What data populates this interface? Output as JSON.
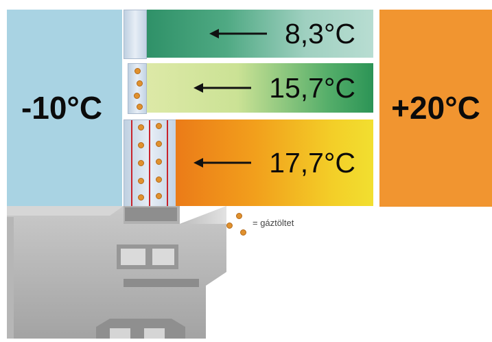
{
  "outside": {
    "label": "-10°C",
    "color": "#a9d3e3"
  },
  "inside": {
    "label": "+20°C",
    "color": "#f19530"
  },
  "bars": [
    {
      "value": "8,3°C"
    },
    {
      "value": "15,7°C"
    },
    {
      "value": "17,7°C"
    }
  ],
  "legend": {
    "text": "= gáztöltet",
    "dot_color": "#e0912e"
  }
}
